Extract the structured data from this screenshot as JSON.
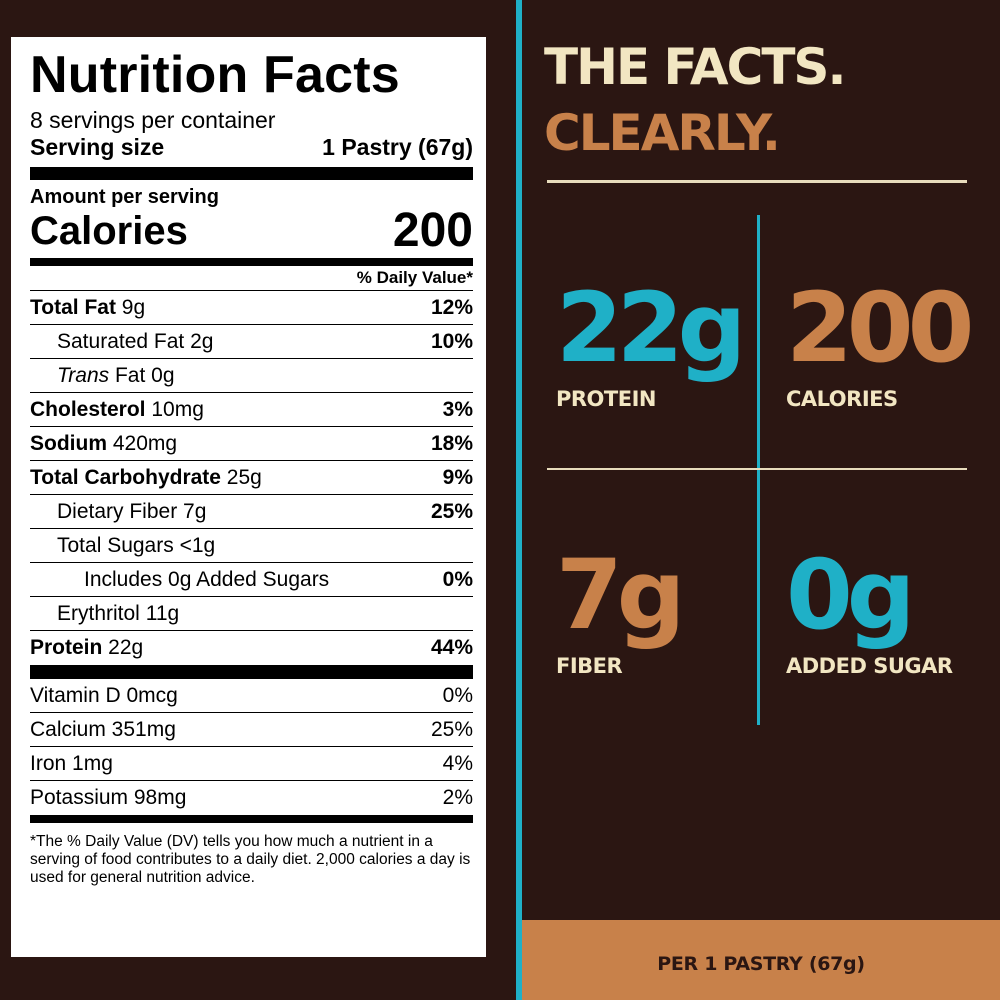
{
  "label": {
    "title": "Nutrition Facts",
    "servings": "8 servings per container",
    "serving_size_label": "Serving size",
    "serving_size_value": "1 Pastry (67g)",
    "amount_per_serving": "Amount per serving",
    "calories_label": "Calories",
    "calories_value": "200",
    "dv_header": "% Daily Value*",
    "nutrients": [
      {
        "name": "Total Fat",
        "amount": " 9g",
        "pct": "12%"
      },
      {
        "name": "Saturated Fat",
        "amount": " 2g",
        "pct": "10%"
      },
      {
        "name": "Trans",
        "amount": " Fat 0g",
        "pct": ""
      },
      {
        "name": "Cholesterol",
        "amount": " 10mg",
        "pct": "3%"
      },
      {
        "name": "Sodium",
        "amount": " 420mg",
        "pct": "18%"
      },
      {
        "name": "Total Carbohydrate",
        "amount": " 25g",
        "pct": "9%"
      },
      {
        "name": "Dietary Fiber",
        "amount": " 7g",
        "pct": "25%"
      },
      {
        "name": "Total Sugars",
        "amount": " <1g",
        "pct": ""
      },
      {
        "name": "Includes 0g Added Sugars",
        "amount": "",
        "pct": "0%"
      },
      {
        "name": "Erythritol",
        "amount": " 11g",
        "pct": ""
      },
      {
        "name": "Protein",
        "amount": " 22g",
        "pct": "44%"
      }
    ],
    "vitamins": [
      {
        "name": "Vitamin D 0mcg",
        "pct": "0%"
      },
      {
        "name": "Calcium 351mg",
        "pct": "25%"
      },
      {
        "name": "Iron 1mg",
        "pct": "4%"
      },
      {
        "name": "Potassium 98mg",
        "pct": "2%"
      }
    ],
    "footnote": "*The % Daily Value (DV) tells you how much a nutrient in a serving of food contributes to a daily diet. 2,000 calories a day is used for general nutrition advice."
  },
  "facts": {
    "heading_line1": "THE FACTS.",
    "heading_line2": "CLEARLY.",
    "stats": [
      {
        "value": "22g",
        "label": "PROTEIN",
        "color": "#1fb0c7"
      },
      {
        "value": "200",
        "label": "CALORIES",
        "color": "#c8814a"
      },
      {
        "value": "7g",
        "label": "FIBER",
        "color": "#c8814a"
      },
      {
        "value": "0g",
        "label": "ADDED SUGAR",
        "color": "#1fb0c7"
      }
    ],
    "footer": "PER 1 PASTRY (67g)"
  },
  "colors": {
    "background": "#2b1612",
    "cyan": "#1fb0c7",
    "tan": "#c8814a",
    "cream": "#f2e6c2"
  }
}
